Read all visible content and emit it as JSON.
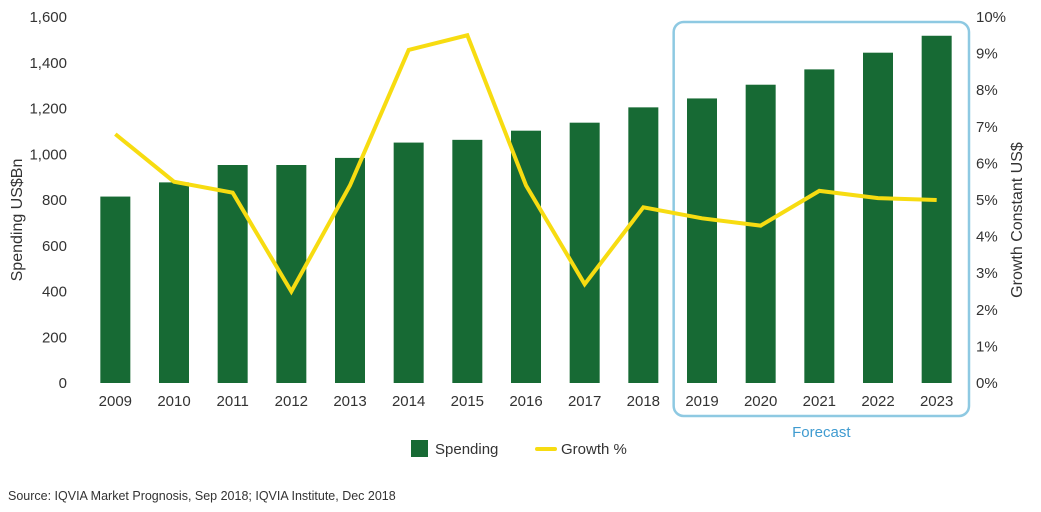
{
  "chart_data": {
    "type": "bar",
    "categories": [
      "2009",
      "2010",
      "2011",
      "2012",
      "2013",
      "2014",
      "2015",
      "2016",
      "2017",
      "2018",
      "2019",
      "2020",
      "2021",
      "2022",
      "2023"
    ],
    "series": [
      {
        "name": "Spending",
        "type": "bar",
        "axis": "left",
        "color": "#176a34",
        "values": [
          815,
          877,
          953,
          953,
          984,
          1051,
          1063,
          1103,
          1138,
          1205,
          1244,
          1304,
          1371,
          1444,
          1518
        ]
      },
      {
        "name": "Growth %",
        "type": "line",
        "axis": "right",
        "color": "#f7dc11",
        "values": [
          6.8,
          5.5,
          5.2,
          2.5,
          5.4,
          9.1,
          9.5,
          5.4,
          2.7,
          4.8,
          4.5,
          4.3,
          5.25,
          5.05,
          5.0
        ]
      }
    ],
    "ylabel": "Spending US$Bn",
    "y2label": "Growth Constant US$",
    "ylim": [
      0,
      1600
    ],
    "y2lim": [
      0,
      10
    ],
    "yticks": [
      "0",
      "200",
      "400",
      "600",
      "800",
      "1,000",
      "1,200",
      "1,400",
      "1,600"
    ],
    "y2ticks": [
      "0%",
      "1%",
      "2%",
      "3%",
      "4%",
      "5%",
      "6%",
      "7%",
      "8%",
      "9%",
      "10%"
    ],
    "grid": false,
    "legend_position": "bottom-center",
    "forecast": {
      "label": "Forecast",
      "from": "2019",
      "to": "2023",
      "color": "#8ec9e2"
    },
    "source": "Source: IQVIA Market Prognosis, Sep 2018; IQVIA Institute, Dec 2018"
  }
}
